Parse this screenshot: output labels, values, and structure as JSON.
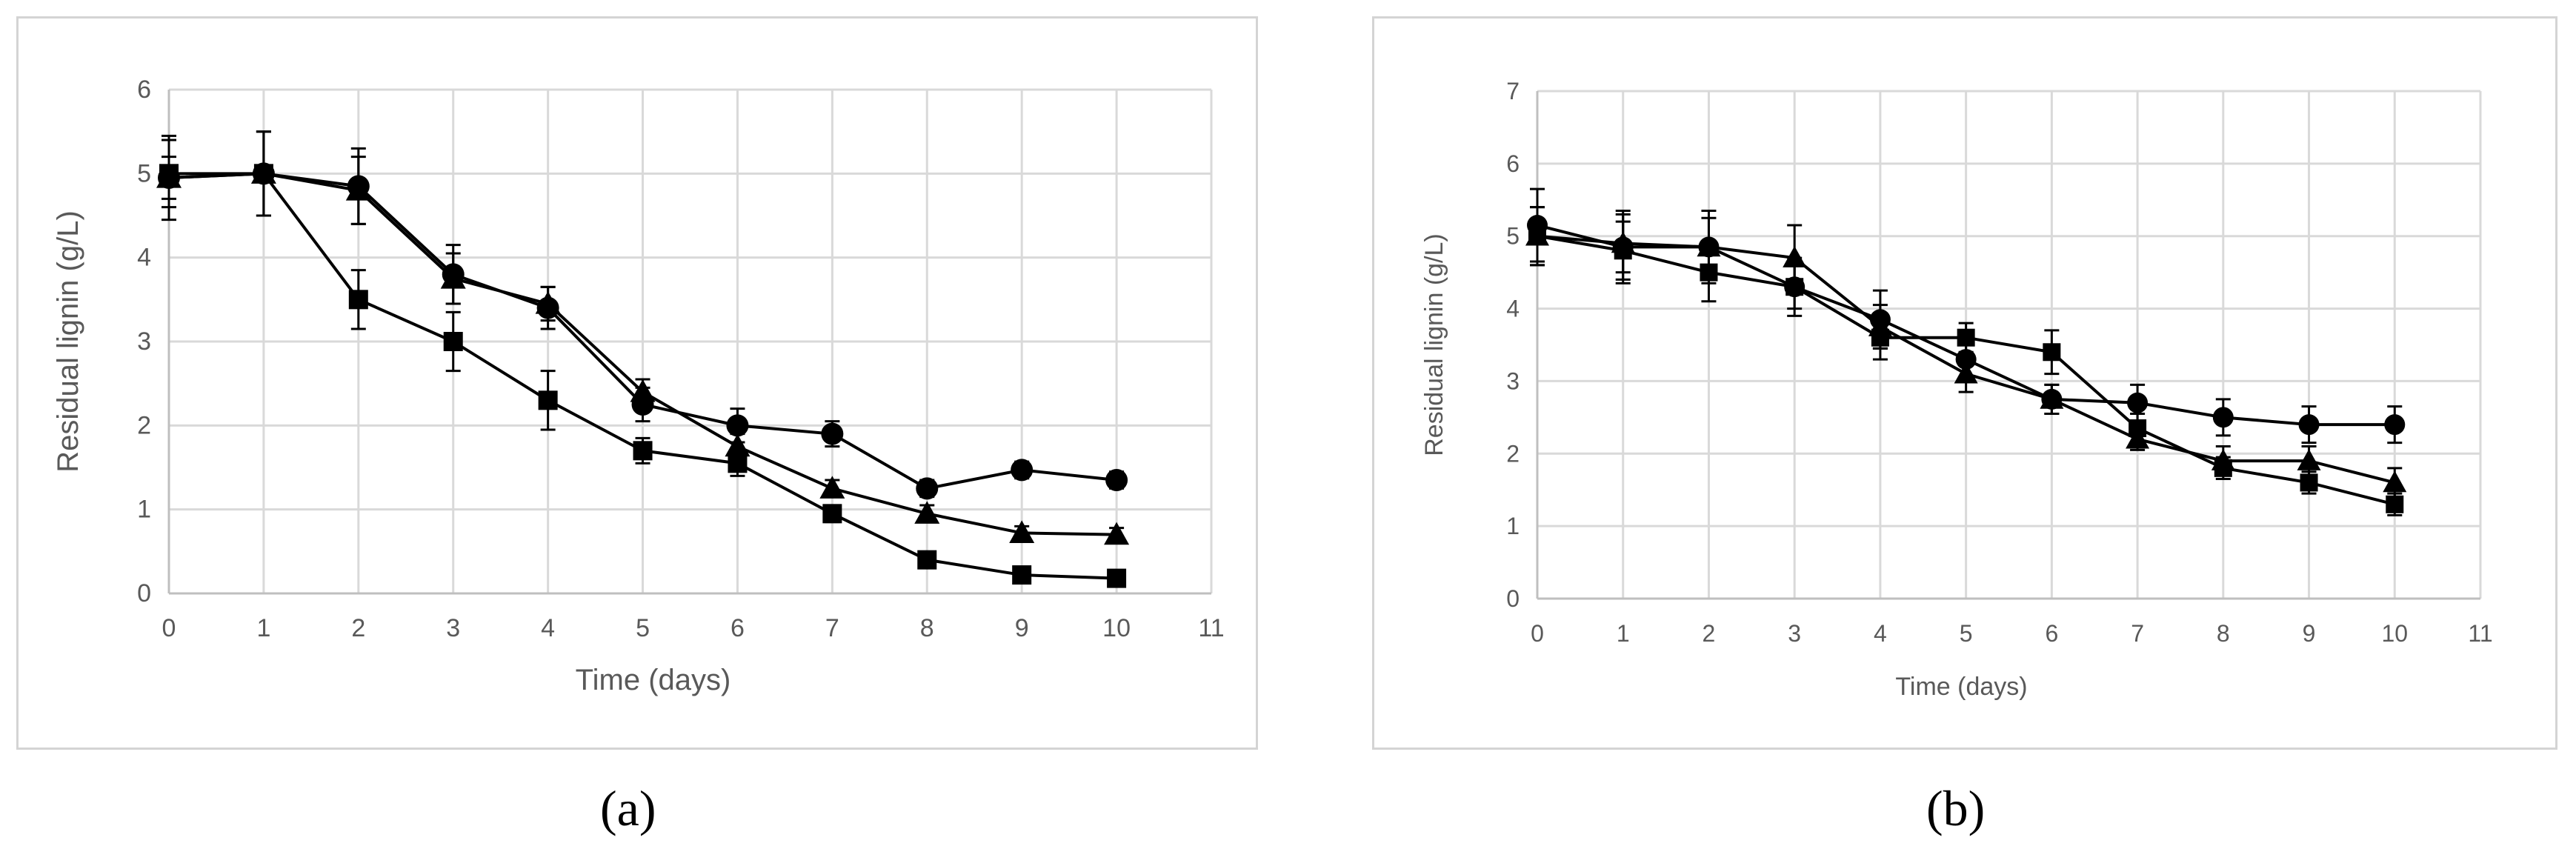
{
  "captions": {
    "a": "(a)",
    "b": "(b)"
  },
  "chart_data": [
    {
      "type": "line",
      "panel": "a",
      "xlabel": "Time (days)",
      "ylabel": "Residual lignin (g/L)",
      "xlim": [
        0,
        11
      ],
      "ylim": [
        0,
        6
      ],
      "xticks": [
        0,
        1,
        2,
        3,
        4,
        5,
        6,
        7,
        8,
        9,
        10,
        11
      ],
      "yticks": [
        0,
        1,
        2,
        3,
        4,
        5,
        6
      ],
      "grid": true,
      "x": [
        0,
        1,
        2,
        3,
        4,
        5,
        6,
        7,
        8,
        9,
        10
      ],
      "series": [
        {
          "marker": "circle",
          "values": [
            4.95,
            5.0,
            4.85,
            3.8,
            3.4,
            2.25,
            2.0,
            1.9,
            1.25,
            1.47,
            1.35
          ],
          "errors": [
            0.25,
            0.5,
            0.45,
            0.35,
            0.25,
            0.2,
            0.2,
            0.15,
            0.1,
            0.1,
            0.1
          ]
        },
        {
          "marker": "triangle",
          "values": [
            4.95,
            5.0,
            4.8,
            3.75,
            3.45,
            2.4,
            1.75,
            1.25,
            0.95,
            0.72,
            0.7
          ],
          "errors": [
            0.5,
            0.5,
            0.4,
            0.3,
            0.2,
            0.15,
            0.15,
            0.1,
            0.1,
            0.08,
            0.08
          ]
        },
        {
          "marker": "square",
          "values": [
            5.0,
            5.0,
            3.5,
            3.0,
            2.3,
            1.7,
            1.55,
            0.95,
            0.4,
            0.22,
            0.18
          ],
          "errors": [
            0.4,
            0.5,
            0.35,
            0.35,
            0.35,
            0.15,
            0.15,
            0.1,
            0.07,
            0.05,
            0.05
          ]
        }
      ]
    },
    {
      "type": "line",
      "panel": "b",
      "xlabel": "Time (days)",
      "ylabel": "Residual lignin (g/L)",
      "xlim": [
        0,
        11
      ],
      "ylim": [
        0,
        7
      ],
      "xticks": [
        0,
        1,
        2,
        3,
        4,
        5,
        6,
        7,
        8,
        9,
        10,
        11
      ],
      "yticks": [
        0,
        1,
        2,
        3,
        4,
        5,
        6,
        7
      ],
      "grid": true,
      "x": [
        0,
        1,
        2,
        3,
        4,
        5,
        6,
        7,
        8,
        9,
        10
      ],
      "series": [
        {
          "marker": "circle",
          "values": [
            5.15,
            4.85,
            4.85,
            4.3,
            3.85,
            3.3,
            2.75,
            2.7,
            2.5,
            2.4,
            2.4
          ],
          "errors": [
            0.5,
            0.5,
            0.5,
            0.3,
            0.4,
            0.3,
            0.2,
            0.25,
            0.25,
            0.25,
            0.25
          ]
        },
        {
          "marker": "triangle",
          "values": [
            5.0,
            4.9,
            4.85,
            4.7,
            3.75,
            3.1,
            2.75,
            2.2,
            1.9,
            1.9,
            1.6
          ],
          "errors": [
            0.4,
            0.4,
            0.4,
            0.45,
            0.3,
            0.25,
            0.2,
            0.15,
            0.2,
            0.2,
            0.2
          ]
        },
        {
          "marker": "square",
          "values": [
            5.0,
            4.8,
            4.5,
            4.3,
            3.6,
            3.6,
            3.4,
            2.35,
            1.8,
            1.6,
            1.3
          ],
          "errors": [
            0.4,
            0.4,
            0.4,
            0.4,
            0.3,
            0.2,
            0.3,
            0.2,
            0.15,
            0.15,
            0.15
          ]
        }
      ]
    }
  ]
}
